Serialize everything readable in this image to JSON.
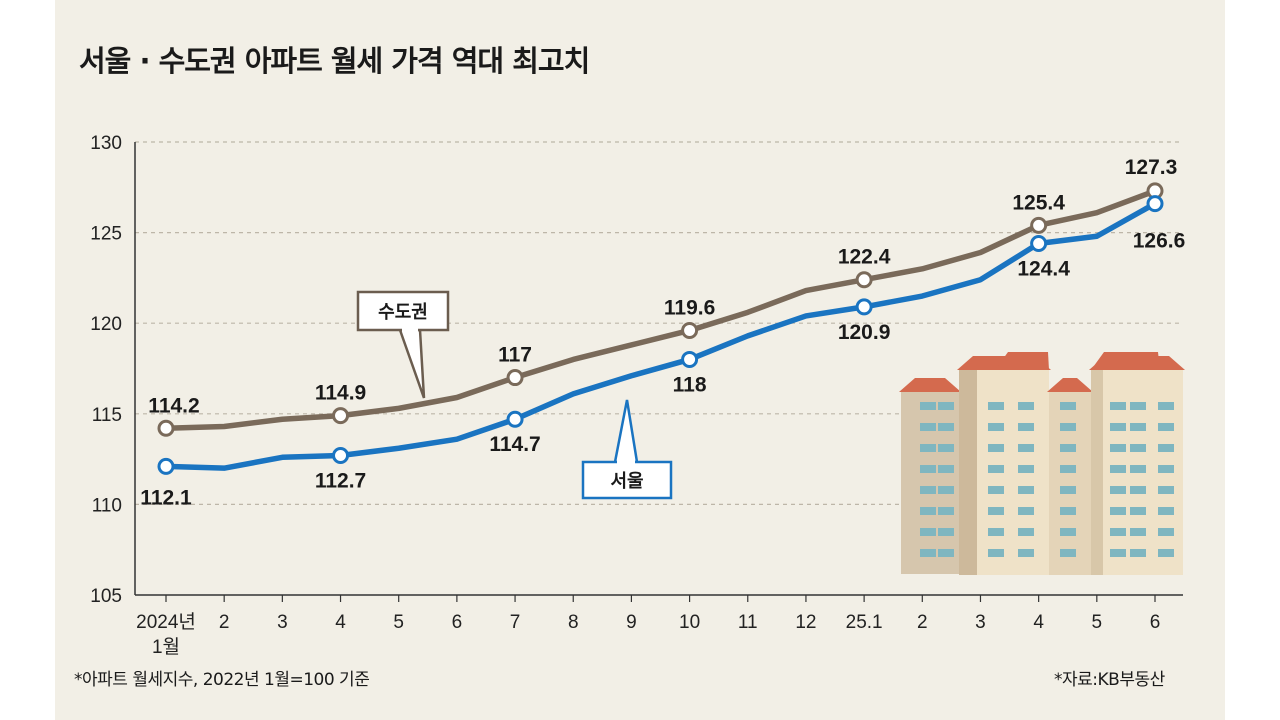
{
  "title": "서울 · 수도권 아파트 월세 가격 역대 최고치",
  "footnote": "*아파트 월세지수, 2022년 1월=100 기준",
  "source": "*자료:KB부동산",
  "chart_data": {
    "type": "line",
    "categories": [
      "2024년\n1월",
      "2",
      "3",
      "4",
      "5",
      "6",
      "7",
      "8",
      "9",
      "10",
      "11",
      "12",
      "25.1",
      "2",
      "3",
      "4",
      "5",
      "6"
    ],
    "ylim": [
      105,
      130
    ],
    "yticks": [
      105,
      110,
      115,
      120,
      125,
      130
    ],
    "grid": true,
    "series": [
      {
        "name": "수도권",
        "color": "#7a6a5a",
        "values": [
          114.2,
          114.3,
          114.7,
          114.9,
          115.3,
          115.9,
          117.0,
          118.0,
          118.8,
          119.6,
          120.6,
          121.8,
          122.4,
          123.0,
          123.9,
          125.4,
          126.1,
          127.3
        ],
        "labeled": [
          0,
          3,
          6,
          9,
          12,
          15,
          17
        ],
        "labels": [
          "114.2",
          "114.9",
          "117",
          "119.6",
          "122.4",
          "125.4",
          "127.3"
        ]
      },
      {
        "name": "서울",
        "color": "#1a74c1",
        "values": [
          112.1,
          112.0,
          112.6,
          112.7,
          113.1,
          113.6,
          114.7,
          116.1,
          117.1,
          118.0,
          119.3,
          120.4,
          120.9,
          121.5,
          122.4,
          124.4,
          124.8,
          126.6
        ],
        "labeled": [
          0,
          3,
          6,
          9,
          12,
          15,
          17
        ],
        "labels": [
          "112.1",
          "112.7",
          "114.7",
          "118",
          "120.9",
          "124.4",
          "126.6"
        ]
      }
    ]
  }
}
